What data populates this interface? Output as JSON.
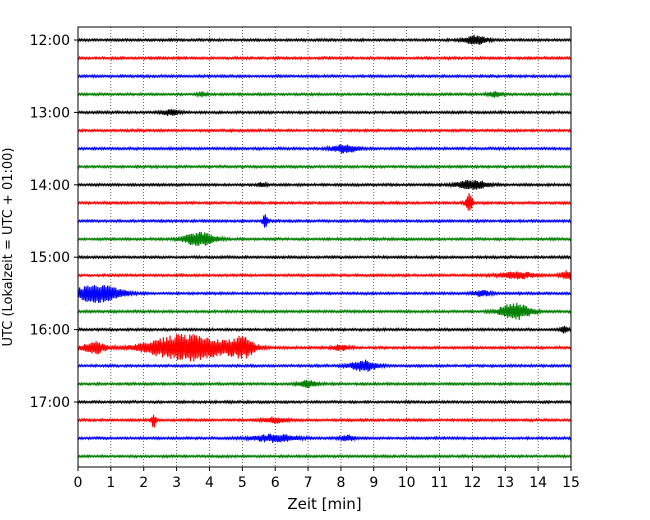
{
  "chart_data": {
    "type": "line",
    "title": "",
    "xlabel": "Zeit  [min]",
    "ylabel": "UTC (Lokalzeit = UTC + 01:00)",
    "xlim": [
      0,
      15
    ],
    "x_ticks": [
      "0",
      "1",
      "2",
      "3",
      "4",
      "5",
      "6",
      "7",
      "8",
      "9",
      "10",
      "11",
      "12",
      "13",
      "14",
      "15"
    ],
    "y_ticks": [
      "12:00",
      "13:00",
      "14:00",
      "15:00",
      "16:00",
      "17:00"
    ],
    "trace_interval_min": 15,
    "grid": "vertical dotted",
    "legend": "none",
    "colors": [
      "#000000",
      "#ff0000",
      "#0000ff",
      "#008000"
    ],
    "traces": [
      {
        "start": "12:00",
        "color": "#000000",
        "events": [
          {
            "t": 12.1,
            "amp": 0.5,
            "dur": 0.5
          }
        ]
      },
      {
        "start": "12:15",
        "color": "#ff0000",
        "events": []
      },
      {
        "start": "12:30",
        "color": "#0000ff",
        "events": []
      },
      {
        "start": "12:45",
        "color": "#008000",
        "events": [
          {
            "t": 3.8,
            "amp": 0.25,
            "dur": 0.2
          },
          {
            "t": 12.7,
            "amp": 0.3,
            "dur": 0.3
          }
        ]
      },
      {
        "start": "13:00",
        "color": "#000000",
        "events": [
          {
            "t": 2.8,
            "amp": 0.3,
            "dur": 0.4
          }
        ]
      },
      {
        "start": "13:15",
        "color": "#ff0000",
        "events": []
      },
      {
        "start": "13:30",
        "color": "#0000ff",
        "events": [
          {
            "t": 8.1,
            "amp": 0.45,
            "dur": 0.6
          }
        ]
      },
      {
        "start": "13:45",
        "color": "#008000",
        "events": []
      },
      {
        "start": "14:00",
        "color": "#000000",
        "events": [
          {
            "t": 5.6,
            "amp": 0.25,
            "dur": 0.2
          },
          {
            "t": 12.0,
            "amp": 0.5,
            "dur": 0.7
          }
        ]
      },
      {
        "start": "14:15",
        "color": "#ff0000",
        "events": [
          {
            "t": 11.9,
            "amp": 1.0,
            "dur": 0.15
          }
        ]
      },
      {
        "start": "14:30",
        "color": "#0000ff",
        "events": [
          {
            "t": 5.7,
            "amp": 0.8,
            "dur": 0.12
          }
        ]
      },
      {
        "start": "14:45",
        "color": "#008000",
        "events": [
          {
            "t": 3.7,
            "amp": 0.75,
            "dur": 0.7
          }
        ]
      },
      {
        "start": "15:00",
        "color": "#000000",
        "events": []
      },
      {
        "start": "15:15",
        "color": "#ff0000",
        "events": [
          {
            "t": 13.4,
            "amp": 0.35,
            "dur": 0.8
          },
          {
            "t": 14.9,
            "amp": 0.5,
            "dur": 0.3
          }
        ]
      },
      {
        "start": "15:30",
        "color": "#0000ff",
        "events": [
          {
            "t": 0.6,
            "amp": 1.0,
            "dur": 1.1
          },
          {
            "t": 12.3,
            "amp": 0.3,
            "dur": 0.4
          }
        ]
      },
      {
        "start": "15:45",
        "color": "#008000",
        "events": [
          {
            "t": 13.3,
            "amp": 0.9,
            "dur": 0.7
          }
        ]
      },
      {
        "start": "16:00",
        "color": "#000000",
        "events": [
          {
            "t": 14.8,
            "amp": 0.35,
            "dur": 0.2
          }
        ]
      },
      {
        "start": "16:15",
        "color": "#ff0000",
        "events": [
          {
            "t": 0.5,
            "amp": 0.7,
            "dur": 0.5
          },
          {
            "t": 3.3,
            "amp": 1.5,
            "dur": 1.8
          },
          {
            "t": 5.0,
            "amp": 1.0,
            "dur": 0.6
          },
          {
            "t": 8.0,
            "amp": 0.3,
            "dur": 0.4
          }
        ]
      },
      {
        "start": "16:30",
        "color": "#0000ff",
        "events": [
          {
            "t": 8.7,
            "amp": 0.6,
            "dur": 0.6
          }
        ]
      },
      {
        "start": "16:45",
        "color": "#008000",
        "events": [
          {
            "t": 7.0,
            "amp": 0.4,
            "dur": 0.4
          }
        ]
      },
      {
        "start": "17:00",
        "color": "#000000",
        "events": []
      },
      {
        "start": "17:15",
        "color": "#ff0000",
        "events": [
          {
            "t": 2.3,
            "amp": 0.8,
            "dur": 0.1
          },
          {
            "t": 6.0,
            "amp": 0.3,
            "dur": 0.5
          }
        ]
      },
      {
        "start": "17:30",
        "color": "#0000ff",
        "events": [
          {
            "t": 6.0,
            "amp": 0.4,
            "dur": 1.0
          },
          {
            "t": 8.2,
            "amp": 0.3,
            "dur": 0.3
          }
        ]
      },
      {
        "start": "17:45",
        "color": "#008000",
        "events": []
      }
    ]
  }
}
